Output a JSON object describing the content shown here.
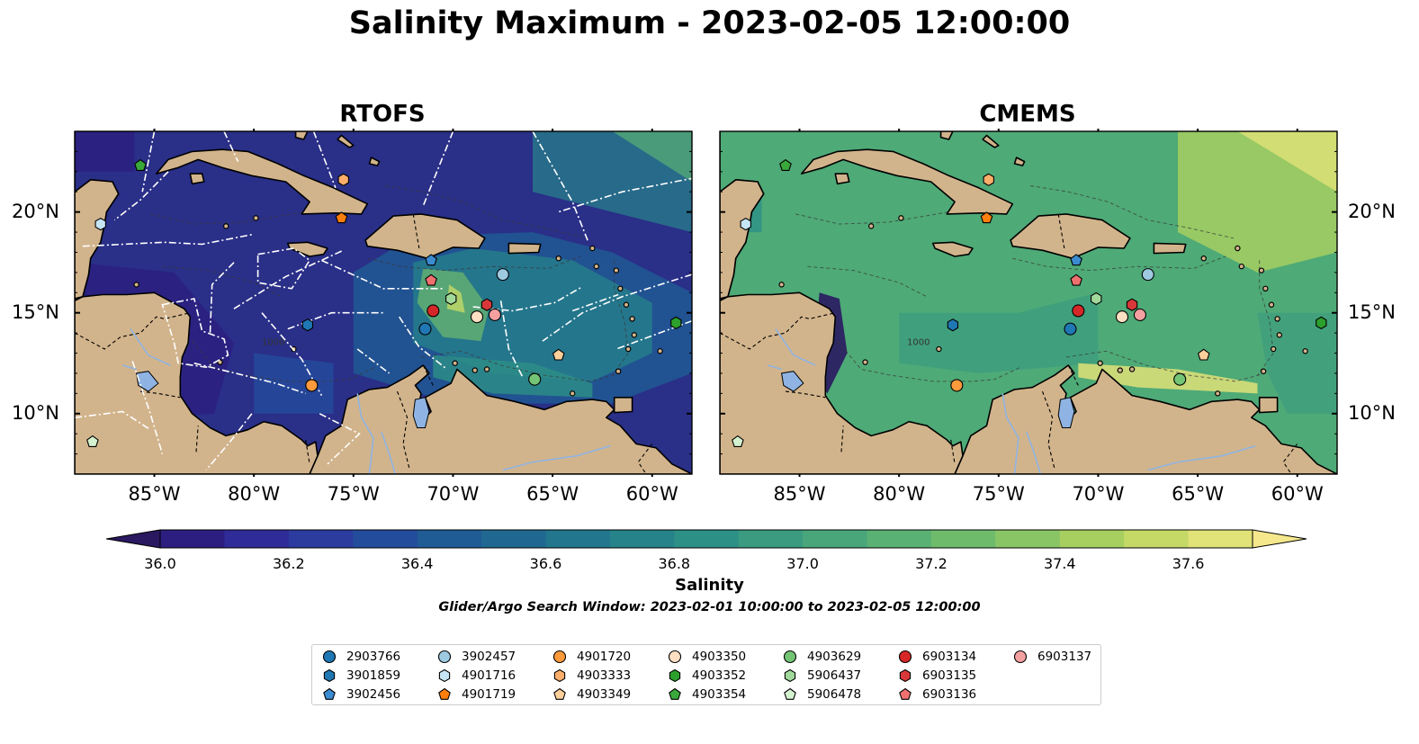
{
  "title": "Salinity Maximum - 2023-02-05 12:00:00",
  "panels": [
    {
      "id": "rtofs",
      "title": "RTOFS"
    },
    {
      "id": "cmems",
      "title": "CMEMS"
    }
  ],
  "map_extent": {
    "lon": [
      -89,
      -58
    ],
    "lat": [
      7,
      24
    ]
  },
  "lon_ticks": [
    "85°W",
    "80°W",
    "75°W",
    "70°W",
    "65°W",
    "60°W"
  ],
  "lat_ticks": [
    "20°N",
    "15°N",
    "10°N"
  ],
  "colorbar": {
    "label": "Salinity",
    "ticks": [
      "36.0",
      "36.2",
      "36.4",
      "36.6",
      "36.8",
      "37.0",
      "37.2",
      "37.4",
      "37.6"
    ],
    "range": [
      35.9,
      37.7
    ],
    "colors": [
      "#2a1860",
      "#2c1e80",
      "#2f2b98",
      "#2c3b9e",
      "#244c9c",
      "#1f5b95",
      "#206891",
      "#22768d",
      "#26838a",
      "#2d9086",
      "#3a9b80",
      "#49a67a",
      "#5ab174",
      "#6fbb6c",
      "#89c565",
      "#a6cf60",
      "#c4d966",
      "#e1e278",
      "#f5e88c"
    ]
  },
  "search_window": "Glider/Argo Search Window: 2023-02-01 10:00:00 to 2023-02-05 12:00:00",
  "contour_label": "1000",
  "colors": {
    "land": "#d2b48c",
    "lake": "#8fb4e3",
    "ocean_rtofs": "#2a2f88",
    "ocean_cmems": "#49a67a"
  },
  "legend": [
    {
      "id": "2903766",
      "marker": "circle",
      "color": "#1f77b4"
    },
    {
      "id": "3901859",
      "marker": "hexagon",
      "color": "#1f77b4"
    },
    {
      "id": "3902456",
      "marker": "pentagon",
      "color": "#3b8bd0"
    },
    {
      "id": "3902457",
      "marker": "circle",
      "color": "#9ecae1"
    },
    {
      "id": "4901716",
      "marker": "hexagon",
      "color": "#c6e5f5"
    },
    {
      "id": "4901719",
      "marker": "pentagon",
      "color": "#ff7f0e"
    },
    {
      "id": "4901720",
      "marker": "circle",
      "color": "#fd9a3c"
    },
    {
      "id": "4903333",
      "marker": "hexagon",
      "color": "#fdae6b"
    },
    {
      "id": "4903349",
      "marker": "pentagon",
      "color": "#fdd09b"
    },
    {
      "id": "4903350",
      "marker": "circle",
      "color": "#fde0c4"
    },
    {
      "id": "4903352",
      "marker": "hexagon",
      "color": "#2ca02c"
    },
    {
      "id": "4903354",
      "marker": "pentagon",
      "color": "#3aa83a"
    },
    {
      "id": "4903629",
      "marker": "circle",
      "color": "#74c476"
    },
    {
      "id": "5906437",
      "marker": "hexagon",
      "color": "#a1d99b"
    },
    {
      "id": "5906478",
      "marker": "pentagon",
      "color": "#d4f2cf"
    },
    {
      "id": "6903134",
      "marker": "circle",
      "color": "#d62728"
    },
    {
      "id": "6903135",
      "marker": "hexagon",
      "color": "#d8383a"
    },
    {
      "id": "6903136",
      "marker": "pentagon",
      "color": "#f07070"
    },
    {
      "id": "6903137",
      "marker": "circle",
      "color": "#f4a0a0"
    }
  ],
  "floats": [
    {
      "id": "2903766",
      "lon": -71.4,
      "lat": 14.2
    },
    {
      "id": "3901859",
      "lon": -77.3,
      "lat": 14.4
    },
    {
      "id": "3902456",
      "lon": -71.1,
      "lat": 17.6
    },
    {
      "id": "3902457",
      "lon": -67.5,
      "lat": 16.9
    },
    {
      "id": "4901716",
      "lon": -87.7,
      "lat": 19.4
    },
    {
      "id": "4901719",
      "lon": -75.6,
      "lat": 19.7
    },
    {
      "id": "4901720",
      "lon": -77.1,
      "lat": 11.4
    },
    {
      "id": "4903333",
      "lon": -75.5,
      "lat": 21.6
    },
    {
      "id": "4903349",
      "lon": -64.7,
      "lat": 12.9
    },
    {
      "id": "4903350",
      "lon": -68.8,
      "lat": 14.8
    },
    {
      "id": "4903352",
      "lon": -58.8,
      "lat": 14.5
    },
    {
      "id": "4903354",
      "lon": -85.7,
      "lat": 22.3
    },
    {
      "id": "4903629",
      "lon": -65.9,
      "lat": 11.7
    },
    {
      "id": "5906437",
      "lon": -70.1,
      "lat": 15.7
    },
    {
      "id": "5906478",
      "lon": -88.1,
      "lat": 8.6
    },
    {
      "id": "6903134",
      "lon": -71.0,
      "lat": 15.1
    },
    {
      "id": "6903135",
      "lon": -68.3,
      "lat": 15.4
    },
    {
      "id": "6903136",
      "lon": -71.1,
      "lat": 16.6
    },
    {
      "id": "6903137",
      "lon": -67.9,
      "lat": 14.9
    }
  ]
}
